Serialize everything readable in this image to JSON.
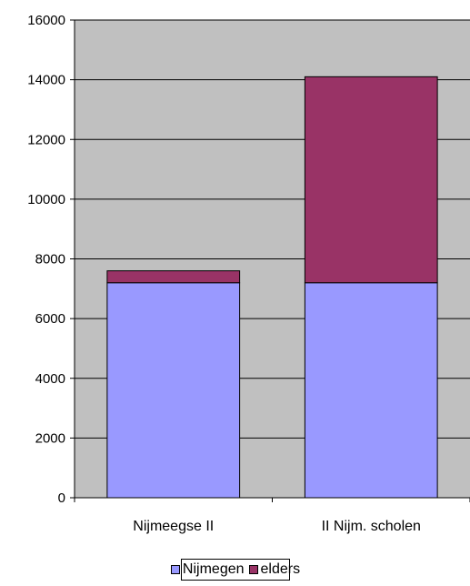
{
  "chart_data": {
    "type": "bar",
    "stacked": true,
    "categories": [
      "Nijmeegse II",
      "II Nijm. scholen"
    ],
    "series": [
      {
        "name": "Nijmegen",
        "values": [
          7200,
          7200
        ],
        "color": "#9999ff"
      },
      {
        "name": "elders",
        "values": [
          400,
          6900
        ],
        "color": "#993366"
      }
    ],
    "ylim": [
      0,
      16000
    ],
    "yticks": [
      0,
      2000,
      4000,
      6000,
      8000,
      10000,
      12000,
      14000,
      16000
    ],
    "grid": true,
    "plot_background": "#c0c0c0",
    "legend_position": "bottom",
    "title": "",
    "xlabel": "",
    "ylabel": ""
  }
}
